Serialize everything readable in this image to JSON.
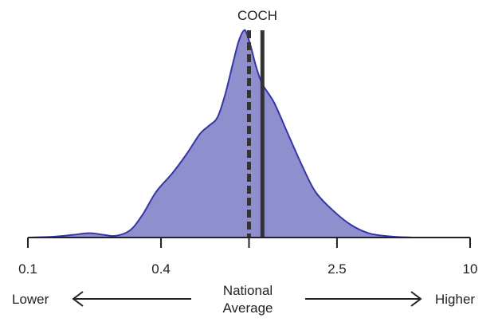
{
  "chart_data": {
    "type": "area",
    "title": "COCH",
    "xscale": "log",
    "xlim": [
      0.1,
      10
    ],
    "ylim": [
      0,
      1
    ],
    "ticks": [
      {
        "value": 0.1,
        "label": "0.1"
      },
      {
        "value": 0.4,
        "label": "0.4"
      },
      {
        "value": 1,
        "label": ""
      },
      {
        "value": 2.5,
        "label": "2.5"
      },
      {
        "value": 10,
        "label": "10"
      }
    ],
    "density": {
      "x": [
        0.1,
        0.13,
        0.16,
        0.19,
        0.22,
        0.25,
        0.29,
        0.33,
        0.38,
        0.45,
        0.52,
        0.6,
        0.66,
        0.72,
        0.78,
        0.85,
        0.9,
        0.95,
        0.98,
        1.02,
        1.08,
        1.15,
        1.3,
        1.5,
        1.75,
        2.0,
        2.4,
        2.9,
        3.5,
        4.3,
        5.5,
        7.0
      ],
      "y": [
        0.0,
        0.004,
        0.013,
        0.021,
        0.013,
        0.008,
        0.035,
        0.11,
        0.22,
        0.31,
        0.4,
        0.5,
        0.54,
        0.58,
        0.69,
        0.85,
        0.95,
        1.0,
        0.98,
        0.92,
        0.82,
        0.74,
        0.65,
        0.5,
        0.34,
        0.22,
        0.13,
        0.06,
        0.02,
        0.006,
        0.0,
        0.0
      ]
    },
    "reference_lines": [
      {
        "value": 1.0,
        "style": "dashed"
      },
      {
        "value": 1.15,
        "style": "solid"
      }
    ],
    "fill_color": "#8f8fce",
    "stroke_color": "#3535a8",
    "line_color": "#333333",
    "annotations": {
      "lower": "Lower",
      "higher": "Higher",
      "center_line1": "National",
      "center_line2": "Average"
    }
  }
}
